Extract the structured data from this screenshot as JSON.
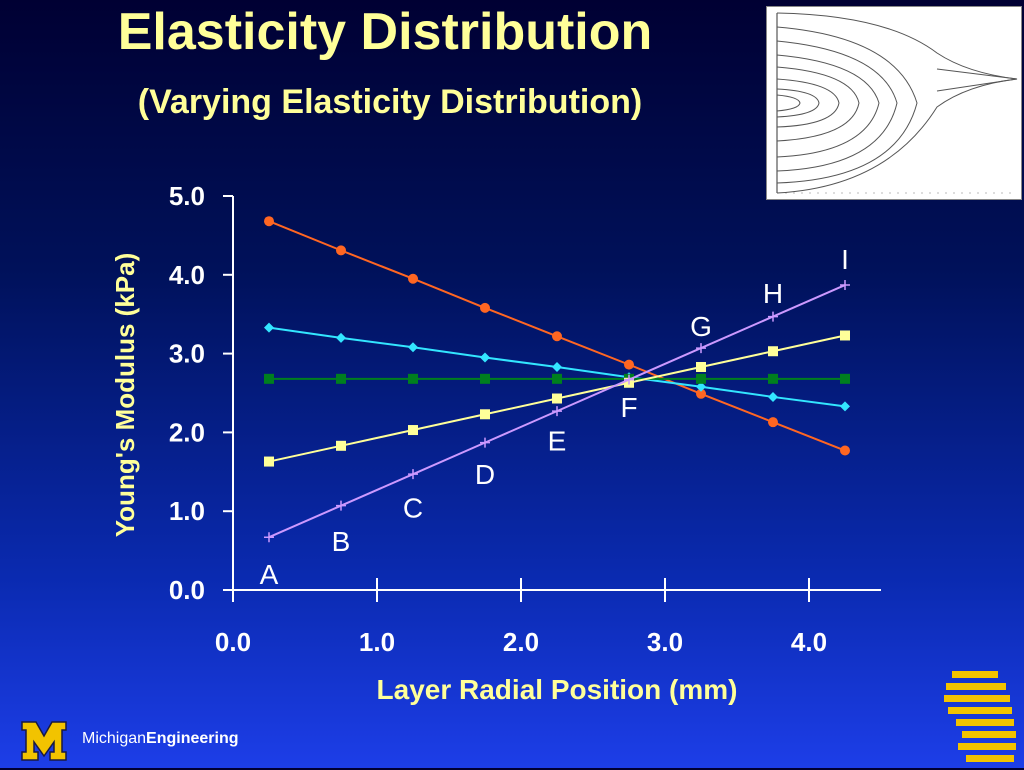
{
  "slide": {
    "title": "Elasticity Distribution",
    "subtitle": "(Varying Elasticity Distribution)"
  },
  "footer": {
    "brand_light": "Michigan",
    "brand_bold": "Engineering"
  },
  "colors": {
    "title": "#ffff99",
    "axis": "#ffffff",
    "series_orange": "#ff6622",
    "series_cyan": "#33e6ff",
    "series_green": "#007f1f",
    "series_yellow": "#ffff99",
    "series_lavender": "#cc99ff"
  },
  "chart_data": {
    "type": "line",
    "title": "",
    "xlabel": "Layer Radial Position (mm)",
    "ylabel": "Young's Modulus (kPa)",
    "xlim": [
      0.0,
      4.5
    ],
    "ylim": [
      0.0,
      5.0
    ],
    "x_ticks": [
      "0.0",
      "1.0",
      "2.0",
      "3.0",
      "4.0"
    ],
    "y_ticks": [
      "0.0",
      "1.0",
      "2.0",
      "3.0",
      "4.0",
      "5.0"
    ],
    "grid": false,
    "x": [
      0.25,
      0.75,
      1.25,
      1.75,
      2.25,
      2.75,
      3.25,
      3.75,
      4.25
    ],
    "series": [
      {
        "color": "#ff6622",
        "marker": "circle",
        "values": [
          4.68,
          4.31,
          3.95,
          3.58,
          3.22,
          2.86,
          2.49,
          2.13,
          1.77
        ]
      },
      {
        "color": "#33e6ff",
        "marker": "diamond",
        "values": [
          3.33,
          3.2,
          3.08,
          2.95,
          2.83,
          2.7,
          2.58,
          2.45,
          2.33
        ]
      },
      {
        "color": "#007f1f",
        "marker": "square",
        "values": [
          2.68,
          2.68,
          2.68,
          2.68,
          2.68,
          2.68,
          2.68,
          2.68,
          2.68
        ]
      },
      {
        "color": "#ffff99",
        "marker": "square",
        "values": [
          1.63,
          1.83,
          2.03,
          2.23,
          2.43,
          2.63,
          2.83,
          3.03,
          3.23
        ]
      },
      {
        "color": "#cc99ff",
        "marker": "plus",
        "values": [
          0.67,
          1.07,
          1.47,
          1.87,
          2.27,
          2.67,
          3.07,
          3.47,
          3.87
        ]
      }
    ],
    "point_labels": [
      {
        "text": "A",
        "x": 0.25,
        "y": 0.2
      },
      {
        "text": "B",
        "x": 0.75,
        "y": 0.62
      },
      {
        "text": "C",
        "x": 1.25,
        "y": 1.05
      },
      {
        "text": "D",
        "x": 1.75,
        "y": 1.47
      },
      {
        "text": "E",
        "x": 2.25,
        "y": 1.9
      },
      {
        "text": "F",
        "x": 2.75,
        "y": 2.32
      },
      {
        "text": "G",
        "x": 3.25,
        "y": 3.35
      },
      {
        "text": "H",
        "x": 3.75,
        "y": 3.77
      },
      {
        "text": "I",
        "x": 4.25,
        "y": 4.2
      }
    ]
  }
}
